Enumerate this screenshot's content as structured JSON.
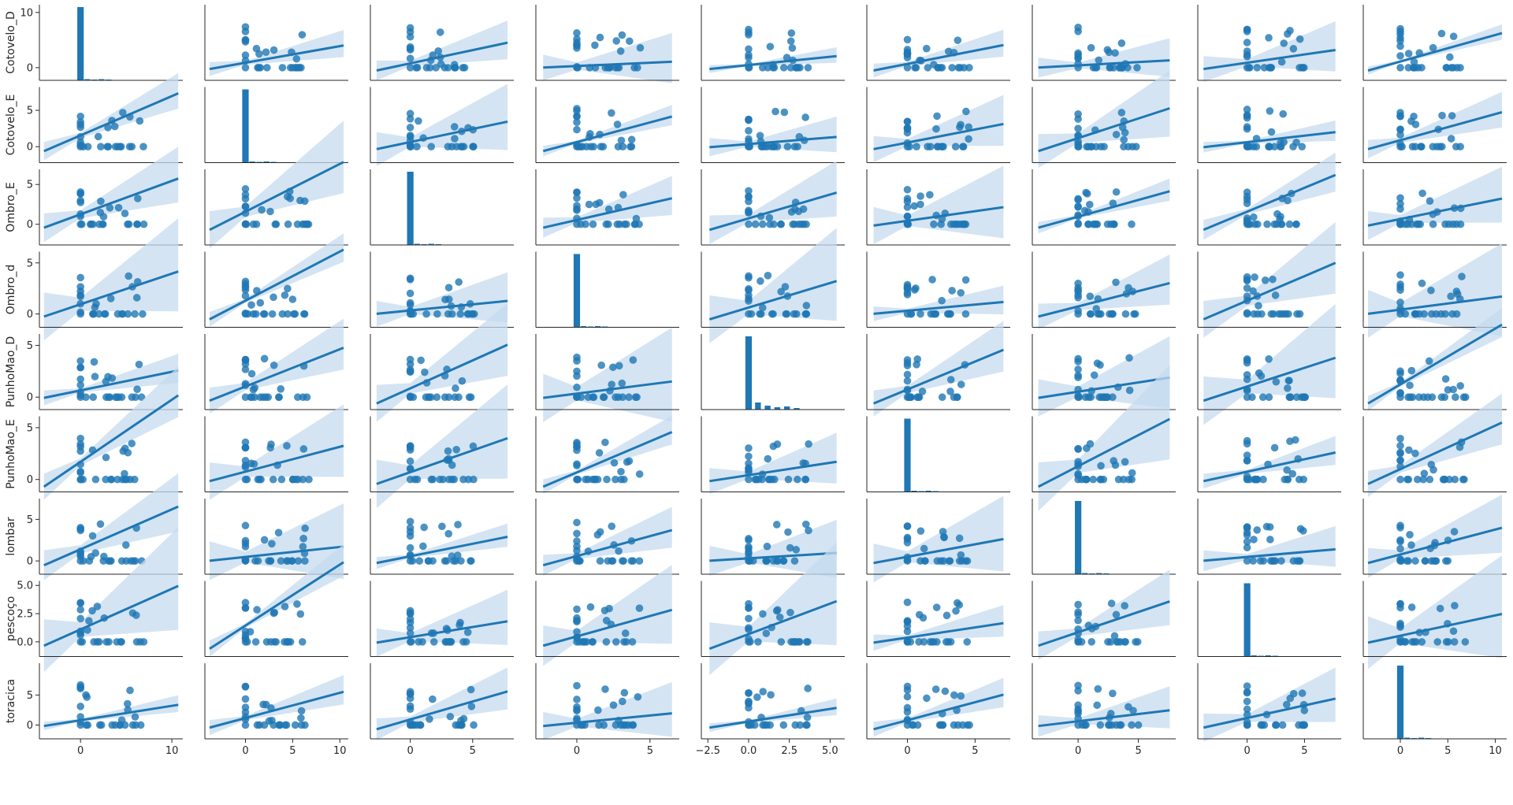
{
  "chart_data": {
    "type": "pairplot",
    "variables": [
      "Cotovelo_D",
      "Cotovelo_E",
      "Ombro_E",
      "Ombro_d",
      "PunhoMao_D",
      "PunhoMao_E",
      "lombar",
      "pescoço",
      "toracica"
    ],
    "diagonal": "histogram",
    "off_diagonal": "scatter with regression line and confidence band",
    "colors": {
      "main": "#1f77b4",
      "band": "#c6dbef",
      "axis": "#262626"
    },
    "x_ticks": [
      [
        "0",
        "10"
      ],
      [
        "0",
        "5",
        "10"
      ],
      [
        "0",
        "5"
      ],
      [
        "0",
        "5"
      ],
      [
        "−2.5",
        "0.0",
        "2.5",
        "5.0"
      ],
      [
        "0",
        "5"
      ],
      [
        "0",
        "5"
      ],
      [
        "0",
        "5"
      ],
      [
        "0",
        "5",
        "10"
      ]
    ],
    "y_ticks": [
      [
        "0",
        "10"
      ],
      [
        "0",
        "5"
      ],
      [
        "0",
        "5"
      ],
      [
        "0",
        "5"
      ],
      [
        "0",
        "5"
      ],
      [
        "0",
        "5"
      ],
      [
        "0",
        "5"
      ],
      [
        "0.0",
        "2.5",
        "5.0"
      ],
      [
        "0",
        "5"
      ]
    ],
    "axis_ranges": {
      "x": [
        [
          -4.5,
          11.2
        ],
        [
          -4.3,
          10.9
        ],
        [
          -3.2,
          8.3
        ],
        [
          -2.8,
          7.0
        ],
        [
          -2.9,
          5.9
        ],
        [
          -3.0,
          7.6
        ],
        [
          -3.8,
          8.1
        ],
        [
          -4.3,
          8.2
        ],
        [
          -3.9,
          11.2
        ]
      ],
      "y": [
        [
          -2.3,
          11.4
        ],
        [
          -2.2,
          8.2
        ],
        [
          -2.6,
          6.9
        ],
        [
          -1.3,
          6.1
        ],
        [
          -1.2,
          6.1
        ],
        [
          -1.2,
          6.1
        ],
        [
          -1.6,
          7.5
        ],
        [
          -1.3,
          5.4
        ],
        [
          -2.3,
          10.3
        ]
      ]
    },
    "note_values": "Scatter points are mostly zero with a handful of values between 0 and 8 in each variable."
  }
}
